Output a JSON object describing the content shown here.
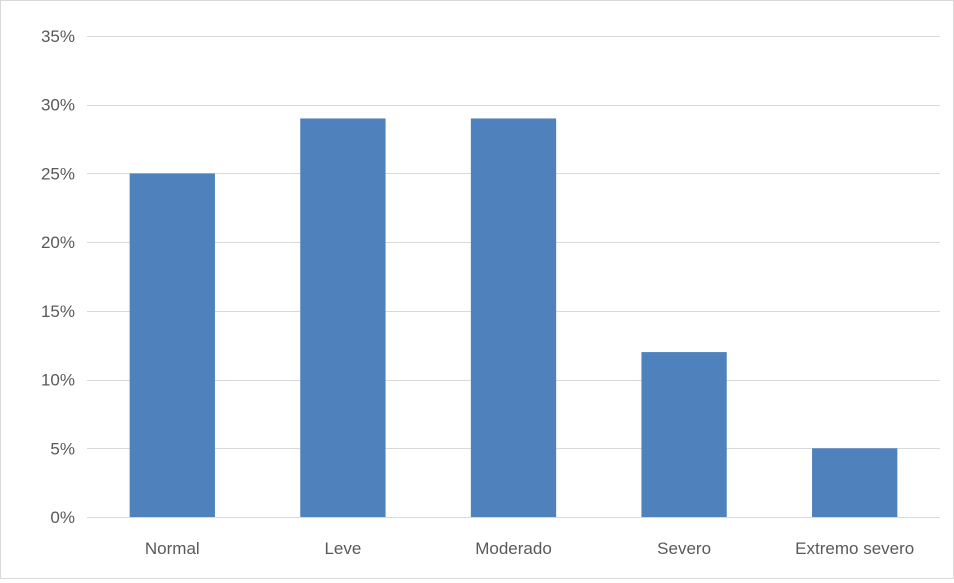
{
  "chart_data": {
    "type": "bar",
    "title": "",
    "xlabel": "",
    "ylabel": "",
    "categories": [
      "Normal",
      "Leve",
      "Moderado",
      "Severo",
      "Extremo severo"
    ],
    "values": [
      25,
      29,
      29,
      12,
      5
    ],
    "ylim": [
      0,
      35
    ],
    "yticks": [
      0,
      5,
      10,
      15,
      20,
      25,
      30,
      35
    ],
    "ytick_labels": [
      "0%",
      "5%",
      "10%",
      "15%",
      "20%",
      "25%",
      "30%",
      "35%"
    ],
    "grid": true,
    "legend": "none",
    "bar_color": "#4f81bd",
    "grid_color": "#d9d9d9"
  }
}
